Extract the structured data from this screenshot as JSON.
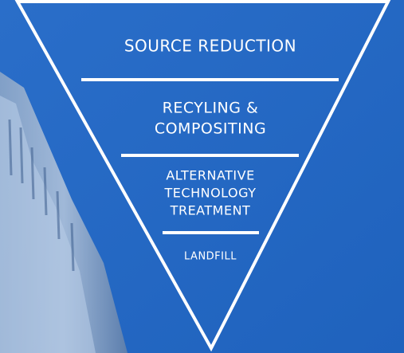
{
  "diagram": {
    "levels": [
      {
        "lines": [
          "SOURCE REDUCTION"
        ]
      },
      {
        "lines": [
          "RECYLING &",
          "COMPOSITING"
        ]
      },
      {
        "lines": [
          "ALTERNATIVE",
          "TECHNOLOGY",
          "TREATMENT"
        ]
      },
      {
        "lines": [
          "LANDFILL"
        ]
      }
    ]
  }
}
